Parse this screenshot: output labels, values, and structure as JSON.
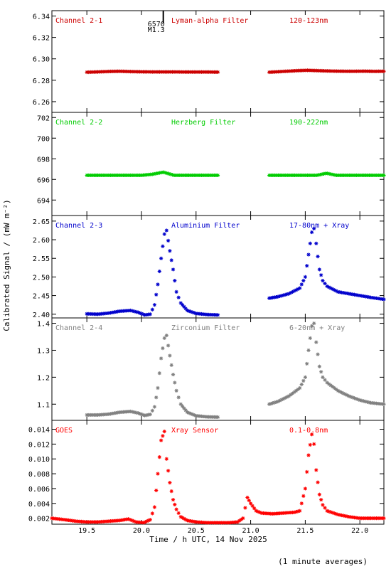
{
  "ylabel": "Calibrated Signal / (mW m⁻²)",
  "xlabel": "Time / h UTC, 14 Nov 2025",
  "footnote": "(1 minute averages)",
  "event_marker": {
    "time": 20.2,
    "lines": [
      "6570",
      "M1.3"
    ]
  },
  "chart_data": [
    {
      "type": "scatter",
      "panel": "Channel 2-1",
      "color": "#cc0000",
      "labels": [
        "Channel 2-1",
        "Lyman-alpha Filter",
        "120-123nm"
      ],
      "ylim": [
        6.25,
        6.345
      ],
      "yticks": [
        6.26,
        6.28,
        6.3,
        6.32,
        6.34
      ],
      "ytick_labels": [
        "6.26",
        "6.28",
        "6.30",
        "6.32",
        "6.34"
      ],
      "xlim": [
        19.18,
        22.22
      ],
      "segments": [
        {
          "x_start": 19.5,
          "x_end": 20.7,
          "y": [
            6.2875,
            6.2878,
            6.2882,
            6.2884,
            6.2881,
            6.2879,
            6.2878,
            6.2878,
            6.2878,
            6.2877,
            6.2877,
            6.2877,
            6.2876
          ]
        },
        {
          "x_start": 21.17,
          "x_end": 22.22,
          "y": [
            6.2875,
            6.288,
            6.2885,
            6.289,
            6.2893,
            6.289,
            6.2887,
            6.2885,
            6.2884,
            6.2884,
            6.2885,
            6.2883,
            6.2884
          ]
        }
      ]
    },
    {
      "type": "scatter",
      "panel": "Channel 2-2",
      "color": "#00cc00",
      "labels": [
        "Channel 2-2",
        "Herzberg Filter",
        "190-222nm"
      ],
      "ylim": [
        692.5,
        702.5
      ],
      "yticks": [
        694,
        696,
        698,
        700,
        702
      ],
      "ytick_labels": [
        "694",
        "696",
        "698",
        "700",
        "702"
      ],
      "xlim": [
        19.18,
        22.22
      ],
      "segments": [
        {
          "x_start": 19.5,
          "x_end": 20.7,
          "y": [
            696.4,
            696.4,
            696.4,
            696.4,
            696.4,
            696.4,
            696.5,
            696.7,
            696.4,
            696.4,
            696.4,
            696.4,
            696.4
          ]
        },
        {
          "x_start": 21.17,
          "x_end": 22.22,
          "y": [
            696.4,
            696.4,
            696.4,
            696.4,
            696.4,
            696.4,
            696.6,
            696.4,
            696.4,
            696.4,
            696.4,
            696.4,
            696.4
          ]
        }
      ]
    },
    {
      "type": "scatter",
      "panel": "Channel 2-3",
      "color": "#0000cc",
      "labels": [
        "Channel 2-3",
        "Aluminium Filter",
        "17-80nm + Xray"
      ],
      "ylim": [
        2.39,
        2.665
      ],
      "yticks": [
        2.4,
        2.45,
        2.5,
        2.55,
        2.6,
        2.65
      ],
      "ytick_labels": [
        "2.40",
        "2.45",
        "2.50",
        "2.55",
        "2.60",
        "2.65"
      ],
      "xlim": [
        19.18,
        22.22
      ],
      "segments": [
        {
          "x": [
            19.5,
            19.6,
            19.7,
            19.8,
            19.9,
            19.97,
            20.03,
            20.08,
            20.12,
            20.15,
            20.18,
            20.21,
            20.23,
            20.26,
            20.29,
            20.32,
            20.36,
            20.42,
            20.5,
            20.6,
            20.7
          ],
          "y": [
            2.401,
            2.4,
            2.403,
            2.408,
            2.41,
            2.405,
            2.398,
            2.4,
            2.425,
            2.48,
            2.55,
            2.615,
            2.625,
            2.57,
            2.52,
            2.46,
            2.43,
            2.41,
            2.402,
            2.399,
            2.398
          ]
        },
        {
          "x": [
            21.17,
            21.25,
            21.35,
            21.45,
            21.5,
            21.53,
            21.56,
            21.58,
            21.6,
            21.63,
            21.66,
            21.7,
            21.8,
            21.9,
            22.0,
            22.1,
            22.22
          ],
          "y": [
            2.443,
            2.447,
            2.455,
            2.47,
            2.5,
            2.56,
            2.62,
            2.63,
            2.59,
            2.52,
            2.49,
            2.475,
            2.46,
            2.455,
            2.45,
            2.445,
            2.44
          ]
        }
      ]
    },
    {
      "type": "scatter",
      "panel": "Channel 2-4",
      "color": "#808080",
      "labels": [
        "Channel 2-4",
        "Zirconium Filter",
        "6-20nm + Xray"
      ],
      "ylim": [
        1.04,
        1.42
      ],
      "yticks": [
        1.1,
        1.2,
        1.3,
        1.4
      ],
      "ytick_labels": [
        "1.1",
        "1.2",
        "1.3",
        "1.4"
      ],
      "xlim": [
        19.18,
        22.22
      ],
      "segments": [
        {
          "x": [
            19.5,
            19.6,
            19.7,
            19.8,
            19.9,
            19.97,
            20.03,
            20.08,
            20.12,
            20.15,
            20.18,
            20.21,
            20.23,
            20.26,
            20.29,
            20.32,
            20.36,
            20.42,
            20.5,
            20.6,
            20.7
          ],
          "y": [
            1.06,
            1.06,
            1.063,
            1.07,
            1.073,
            1.067,
            1.058,
            1.062,
            1.09,
            1.16,
            1.27,
            1.345,
            1.355,
            1.28,
            1.21,
            1.15,
            1.1,
            1.07,
            1.057,
            1.053,
            1.052
          ]
        },
        {
          "x": [
            21.17,
            21.25,
            21.35,
            21.45,
            21.5,
            21.53,
            21.56,
            21.58,
            21.6,
            21.63,
            21.66,
            21.7,
            21.8,
            21.9,
            22.0,
            22.1,
            22.22
          ],
          "y": [
            1.1,
            1.11,
            1.13,
            1.16,
            1.2,
            1.3,
            1.39,
            1.4,
            1.33,
            1.24,
            1.2,
            1.18,
            1.15,
            1.13,
            1.115,
            1.105,
            1.1
          ]
        }
      ]
    },
    {
      "type": "scatter",
      "panel": "GOES",
      "color": "#ff0000",
      "labels": [
        "GOES",
        "Xray Sensor",
        "0.1-0.8nm"
      ],
      "ylim": [
        0.0012,
        0.0152
      ],
      "yticks": [
        0.002,
        0.004,
        0.006,
        0.008,
        0.01,
        0.012,
        0.014
      ],
      "ytick_labels": [
        "0.002",
        "0.004",
        "0.006",
        "0.008",
        "0.010",
        "0.012",
        "0.014"
      ],
      "xlim": [
        19.18,
        22.22
      ],
      "segments": [
        {
          "x": [
            19.18,
            19.3,
            19.4,
            19.5,
            19.6,
            19.7,
            19.8,
            19.88,
            19.95,
            20.02,
            20.08,
            20.12,
            20.15,
            20.18,
            20.21,
            20.23,
            20.26,
            20.29,
            20.32,
            20.36,
            20.42,
            20.5,
            20.6,
            20.7,
            20.8,
            20.88,
            20.93,
            20.97,
            21.0,
            21.05,
            21.1,
            21.2,
            21.3,
            21.4,
            21.45,
            21.5,
            21.53,
            21.56,
            21.58,
            21.6,
            21.63,
            21.66,
            21.7,
            21.8,
            21.9,
            22.0,
            22.1,
            22.22
          ],
          "y": [
            0.002,
            0.0018,
            0.0016,
            0.0015,
            0.0015,
            0.0016,
            0.0017,
            0.0019,
            0.0015,
            0.0014,
            0.0018,
            0.0035,
            0.008,
            0.0125,
            0.0137,
            0.01,
            0.0068,
            0.0045,
            0.0032,
            0.0022,
            0.0017,
            0.0015,
            0.0014,
            0.0014,
            0.0014,
            0.0015,
            0.002,
            0.0048,
            0.004,
            0.003,
            0.0027,
            0.0026,
            0.0027,
            0.0028,
            0.003,
            0.006,
            0.0105,
            0.0133,
            0.012,
            0.0085,
            0.0052,
            0.0038,
            0.003,
            0.0025,
            0.0022,
            0.002,
            0.002,
            0.002
          ]
        }
      ]
    }
  ],
  "xticks": [
    19.5,
    20.0,
    20.5,
    21.0,
    21.5,
    22.0
  ],
  "xtick_labels": [
    "19.5",
    "20.0",
    "20.5",
    "21.0",
    "21.5",
    "22.0"
  ]
}
